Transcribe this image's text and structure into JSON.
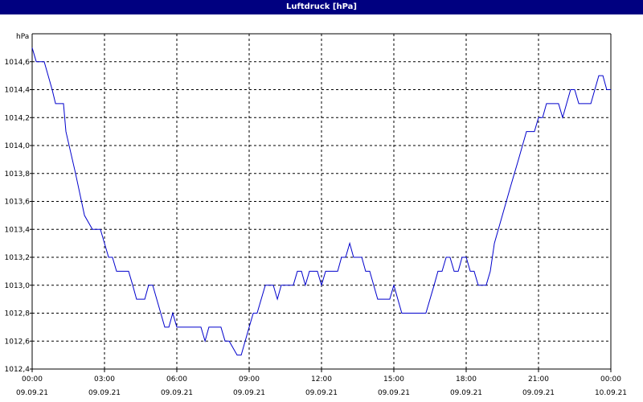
{
  "window": {
    "title": "Luftdruck [hPa]"
  },
  "chart_data": {
    "type": "line",
    "title": "Luftdruck [hPa]",
    "ylabel": "hPa",
    "xlabel": "",
    "ylim": [
      1012.4,
      1014.8
    ],
    "xlim": [
      0,
      24
    ],
    "grid": true,
    "x_ticks": [
      {
        "x": 0,
        "time": "00:00",
        "date": "09.09.21"
      },
      {
        "x": 3,
        "time": "03:00",
        "date": "09.09.21"
      },
      {
        "x": 6,
        "time": "06:00",
        "date": "09.09.21"
      },
      {
        "x": 9,
        "time": "09:00",
        "date": "09.09.21"
      },
      {
        "x": 12,
        "time": "12:00",
        "date": "09.09.21"
      },
      {
        "x": 15,
        "time": "15:00",
        "date": "09.09.21"
      },
      {
        "x": 18,
        "time": "18:00",
        "date": "09.09.21"
      },
      {
        "x": 21,
        "time": "21:00",
        "date": "09.09.21"
      },
      {
        "x": 24,
        "time": "00:00",
        "date": "10.09.21"
      }
    ],
    "y_ticks": [
      {
        "v": 1012.4,
        "label": "1012,4"
      },
      {
        "v": 1012.6,
        "label": "1012,6"
      },
      {
        "v": 1012.8,
        "label": "1012,8"
      },
      {
        "v": 1013.0,
        "label": "1013,0"
      },
      {
        "v": 1013.2,
        "label": "1013,2"
      },
      {
        "v": 1013.4,
        "label": "1013,4"
      },
      {
        "v": 1013.6,
        "label": "1013,6"
      },
      {
        "v": 1013.8,
        "label": "1013,8"
      },
      {
        "v": 1014.0,
        "label": "1014,0"
      },
      {
        "v": 1014.2,
        "label": "1014,2"
      },
      {
        "v": 1014.4,
        "label": "1014,4"
      },
      {
        "v": 1014.6,
        "label": "1014,6"
      }
    ],
    "series": [
      {
        "color": "#0000cc",
        "points": [
          [
            0.0,
            1014.7
          ],
          [
            0.17,
            1014.6
          ],
          [
            0.5,
            1014.6
          ],
          [
            0.83,
            1014.4
          ],
          [
            0.97,
            1014.3
          ],
          [
            1.17,
            1014.3
          ],
          [
            1.3,
            1014.3
          ],
          [
            1.4,
            1014.1
          ],
          [
            1.8,
            1013.8
          ],
          [
            2.17,
            1013.5
          ],
          [
            2.5,
            1013.4
          ],
          [
            2.83,
            1013.4
          ],
          [
            3.17,
            1013.2
          ],
          [
            3.33,
            1013.2
          ],
          [
            3.5,
            1013.1
          ],
          [
            4.0,
            1013.1
          ],
          [
            4.17,
            1013.0
          ],
          [
            4.33,
            1012.9
          ],
          [
            4.67,
            1012.9
          ],
          [
            4.83,
            1013.0
          ],
          [
            5.0,
            1013.0
          ],
          [
            5.5,
            1012.7
          ],
          [
            5.67,
            1012.7
          ],
          [
            5.83,
            1012.8
          ],
          [
            6.0,
            1012.7
          ],
          [
            7.0,
            1012.7
          ],
          [
            7.17,
            1012.6
          ],
          [
            7.33,
            1012.7
          ],
          [
            7.83,
            1012.7
          ],
          [
            8.0,
            1012.6
          ],
          [
            8.17,
            1012.6
          ],
          [
            8.5,
            1012.5
          ],
          [
            8.67,
            1012.5
          ],
          [
            9.0,
            1012.7
          ],
          [
            9.17,
            1012.8
          ],
          [
            9.33,
            1012.8
          ],
          [
            9.67,
            1013.0
          ],
          [
            10.0,
            1013.0
          ],
          [
            10.17,
            1012.9
          ],
          [
            10.33,
            1013.0
          ],
          [
            10.83,
            1013.0
          ],
          [
            11.0,
            1013.1
          ],
          [
            11.17,
            1013.1
          ],
          [
            11.33,
            1013.0
          ],
          [
            11.5,
            1013.1
          ],
          [
            11.83,
            1013.1
          ],
          [
            12.0,
            1013.0
          ],
          [
            12.17,
            1013.1
          ],
          [
            12.67,
            1013.1
          ],
          [
            12.83,
            1013.2
          ],
          [
            13.0,
            1013.2
          ],
          [
            13.17,
            1013.3
          ],
          [
            13.33,
            1013.2
          ],
          [
            13.67,
            1013.2
          ],
          [
            13.83,
            1013.1
          ],
          [
            14.0,
            1013.1
          ],
          [
            14.33,
            1012.9
          ],
          [
            14.83,
            1012.9
          ],
          [
            15.0,
            1013.0
          ],
          [
            15.33,
            1012.8
          ],
          [
            16.33,
            1012.8
          ],
          [
            16.67,
            1013.0
          ],
          [
            16.83,
            1013.1
          ],
          [
            17.0,
            1013.1
          ],
          [
            17.17,
            1013.2
          ],
          [
            17.33,
            1013.2
          ],
          [
            17.5,
            1013.1
          ],
          [
            17.67,
            1013.1
          ],
          [
            17.83,
            1013.2
          ],
          [
            18.0,
            1013.2
          ],
          [
            18.17,
            1013.1
          ],
          [
            18.33,
            1013.1
          ],
          [
            18.5,
            1013.0
          ],
          [
            18.83,
            1013.0
          ],
          [
            19.0,
            1013.1
          ],
          [
            19.17,
            1013.3
          ],
          [
            19.5,
            1013.5
          ],
          [
            19.83,
            1013.7
          ],
          [
            20.17,
            1013.9
          ],
          [
            20.5,
            1014.1
          ],
          [
            20.83,
            1014.1
          ],
          [
            21.0,
            1014.2
          ],
          [
            21.17,
            1014.2
          ],
          [
            21.33,
            1014.3
          ],
          [
            21.83,
            1014.3
          ],
          [
            22.0,
            1014.2
          ],
          [
            22.33,
            1014.4
          ],
          [
            22.5,
            1014.4
          ],
          [
            22.67,
            1014.3
          ],
          [
            23.17,
            1014.3
          ],
          [
            23.5,
            1014.5
          ],
          [
            23.67,
            1014.5
          ],
          [
            23.83,
            1014.4
          ],
          [
            24.0,
            1014.4
          ]
        ]
      }
    ]
  }
}
